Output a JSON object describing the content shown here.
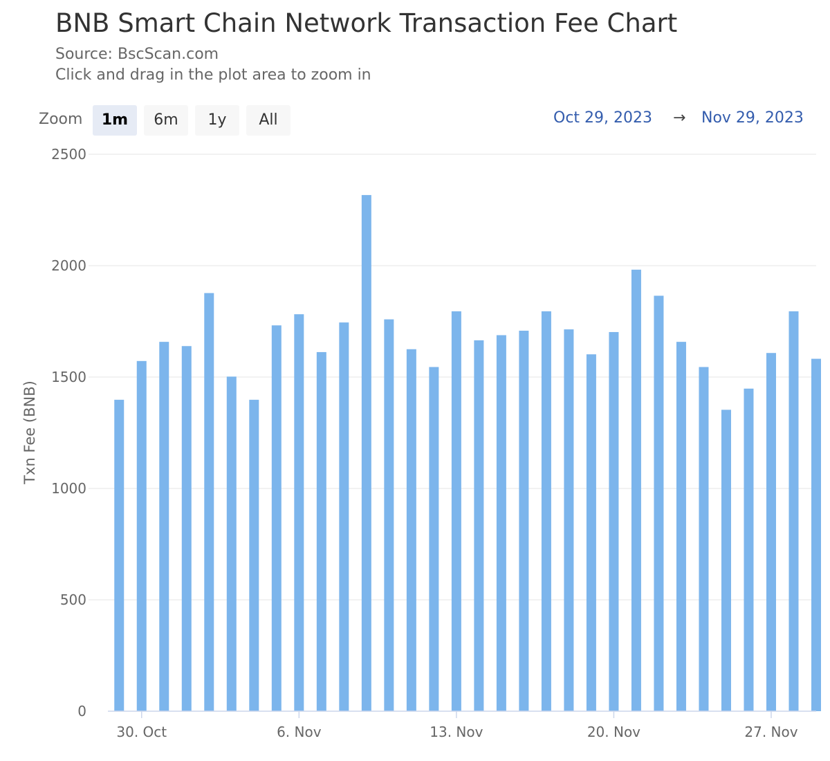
{
  "title": "BNB Smart Chain Network Transaction Fee Chart",
  "subtitle": "Source: BscScan.com",
  "subtitle2": "Click and drag in the plot area to zoom in",
  "zoom": {
    "label": "Zoom",
    "buttons": [
      "1m",
      "6m",
      "1y",
      "All"
    ],
    "active": "1m"
  },
  "range": {
    "from": "Oct 29, 2023",
    "arrow": "→",
    "to": "Nov 29, 2023"
  },
  "colors": {
    "bar": "#7cb5ec",
    "grid": "#e6e6e6",
    "axis": "#ccd6eb"
  },
  "chart_data": {
    "type": "bar",
    "title": "BNB Smart Chain Network Transaction Fee Chart",
    "subtitle": "Source: BscScan.com",
    "xlabel": "",
    "ylabel": "Txn Fee (BNB)",
    "ylim": [
      0,
      2500
    ],
    "yticks": [
      0,
      500,
      1000,
      1500,
      2000,
      2500
    ],
    "grid": true,
    "legend": "none",
    "x_start": "2023-10-29",
    "x_end": "2023-11-29",
    "xticks": [
      {
        "date": "2023-10-30",
        "label": "30. Oct"
      },
      {
        "date": "2023-11-06",
        "label": "6. Nov"
      },
      {
        "date": "2023-11-13",
        "label": "13. Nov"
      },
      {
        "date": "2023-11-20",
        "label": "20. Nov"
      },
      {
        "date": "2023-11-27",
        "label": "27. Nov"
      }
    ],
    "dates": [
      "2023-10-29",
      "2023-10-30",
      "2023-10-31",
      "2023-11-01",
      "2023-11-02",
      "2023-11-03",
      "2023-11-04",
      "2023-11-05",
      "2023-11-06",
      "2023-11-07",
      "2023-11-08",
      "2023-11-09",
      "2023-11-10",
      "2023-11-11",
      "2023-11-12",
      "2023-11-13",
      "2023-11-14",
      "2023-11-15",
      "2023-11-16",
      "2023-11-17",
      "2023-11-18",
      "2023-11-19",
      "2023-11-20",
      "2023-11-21",
      "2023-11-22",
      "2023-11-23",
      "2023-11-24",
      "2023-11-25",
      "2023-11-26",
      "2023-11-27",
      "2023-11-28",
      "2023-11-29"
    ],
    "values": [
      1398,
      1572,
      1658,
      1639,
      1877,
      1502,
      1398,
      1732,
      1782,
      1612,
      1745,
      2317,
      1759,
      1625,
      1545,
      1795,
      1665,
      1688,
      1708,
      1795,
      1714,
      1602,
      1702,
      1982,
      1865,
      1658,
      1545,
      1353,
      1448,
      1608,
      1795,
      1582
    ]
  }
}
